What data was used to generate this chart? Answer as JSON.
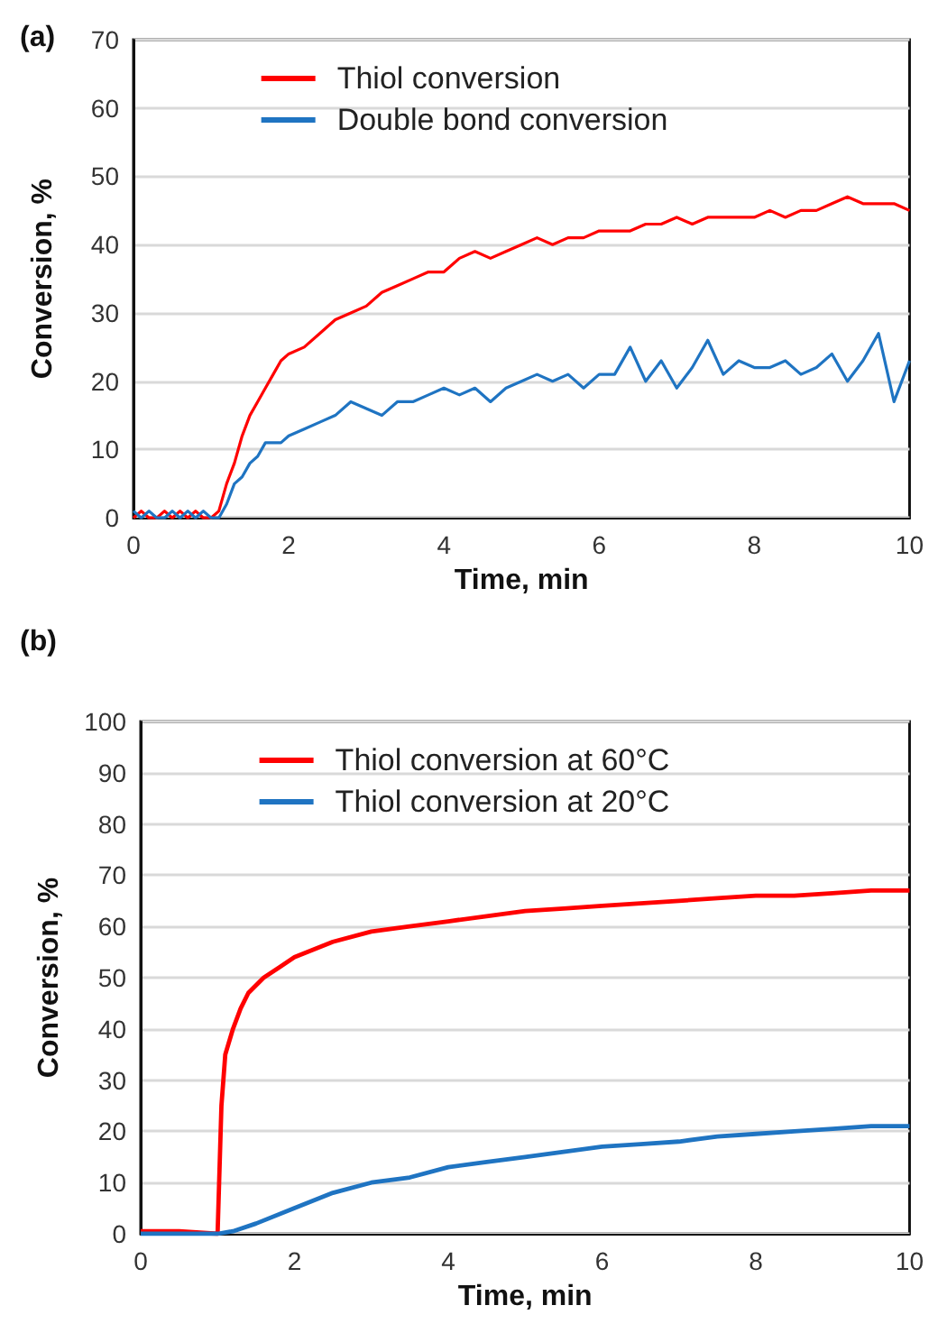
{
  "chart_data": [
    {
      "type": "line",
      "title": "(a)",
      "xlabel": "Time, min",
      "ylabel": "Conversion, %",
      "xlim": [
        0,
        10
      ],
      "xticks": [
        0,
        2,
        4,
        6,
        8,
        10
      ],
      "ylim": [
        0,
        70
      ],
      "yticks": [
        0,
        10,
        20,
        30,
        40,
        50,
        60,
        70
      ],
      "grid": "y",
      "legend": "top",
      "marker": "none",
      "line_style": "solid",
      "series": [
        {
          "name": "Thiol conversion",
          "color": "#ff0000",
          "x": [
            0,
            0.1,
            0.2,
            0.3,
            0.4,
            0.5,
            0.6,
            0.7,
            0.8,
            0.9,
            1.0,
            1.1,
            1.2,
            1.3,
            1.4,
            1.5,
            1.6,
            1.7,
            1.8,
            1.9,
            2.0,
            2.2,
            2.4,
            2.6,
            2.8,
            3.0,
            3.2,
            3.4,
            3.6,
            3.8,
            4.0,
            4.2,
            4.4,
            4.6,
            4.8,
            5.0,
            5.2,
            5.4,
            5.6,
            5.8,
            6.0,
            6.2,
            6.4,
            6.6,
            6.8,
            7.0,
            7.2,
            7.4,
            7.6,
            7.8,
            8.0,
            8.2,
            8.4,
            8.6,
            8.8,
            9.0,
            9.2,
            9.4,
            9.6,
            9.8,
            10
          ],
          "values": [
            0,
            1,
            0,
            0,
            1,
            0,
            1,
            0,
            1,
            0,
            0,
            1,
            5,
            8,
            12,
            15,
            17,
            19,
            21,
            23,
            24,
            25,
            27,
            29,
            30,
            31,
            33,
            34,
            35,
            36,
            36,
            38,
            39,
            38,
            39,
            40,
            41,
            40,
            41,
            41,
            42,
            42,
            42,
            43,
            43,
            44,
            43,
            44,
            44,
            44,
            44,
            45,
            44,
            45,
            45,
            46,
            47,
            46,
            46,
            46,
            45
          ]
        },
        {
          "name": "Double bond conversion",
          "color": "#1f74c2",
          "x": [
            0,
            0.1,
            0.2,
            0.3,
            0.4,
            0.5,
            0.6,
            0.7,
            0.8,
            0.9,
            1.0,
            1.1,
            1.2,
            1.3,
            1.4,
            1.5,
            1.6,
            1.7,
            1.8,
            1.9,
            2.0,
            2.2,
            2.4,
            2.6,
            2.8,
            3.0,
            3.2,
            3.4,
            3.6,
            3.8,
            4.0,
            4.2,
            4.4,
            4.6,
            4.8,
            5.0,
            5.2,
            5.4,
            5.6,
            5.8,
            6.0,
            6.2,
            6.4,
            6.6,
            6.8,
            7.0,
            7.2,
            7.4,
            7.6,
            7.8,
            8.0,
            8.2,
            8.4,
            8.6,
            8.8,
            9.0,
            9.2,
            9.4,
            9.6,
            9.8,
            10
          ],
          "values": [
            1,
            0,
            1,
            0,
            0,
            1,
            0,
            1,
            0,
            1,
            0,
            0,
            2,
            5,
            6,
            8,
            9,
            11,
            11,
            11,
            12,
            13,
            14,
            15,
            17,
            16,
            15,
            17,
            17,
            18,
            19,
            18,
            19,
            17,
            19,
            20,
            21,
            20,
            21,
            19,
            21,
            21,
            25,
            20,
            23,
            19,
            22,
            26,
            21,
            23,
            22,
            22,
            23,
            21,
            22,
            24,
            20,
            23,
            27,
            17,
            23
          ]
        }
      ]
    },
    {
      "type": "line",
      "title": "(b)",
      "xlabel": "Time, min",
      "ylabel": "Conversion, %",
      "xlim": [
        0,
        10
      ],
      "xticks": [
        0,
        2,
        4,
        6,
        8,
        10
      ],
      "ylim": [
        0,
        100
      ],
      "yticks": [
        0,
        10,
        20,
        30,
        40,
        50,
        60,
        70,
        80,
        90,
        100
      ],
      "grid": "y",
      "legend": "top",
      "marker": "none",
      "line_style": "solid",
      "series": [
        {
          "name": "Thiol conversion at 60°C",
          "color": "#ff0000",
          "x": [
            0,
            0.5,
            1.0,
            1.02,
            1.05,
            1.1,
            1.2,
            1.3,
            1.4,
            1.6,
            1.8,
            2.0,
            2.5,
            3.0,
            3.5,
            4.0,
            4.5,
            5.0,
            5.5,
            6.0,
            6.5,
            7.0,
            7.5,
            8.0,
            8.5,
            9.0,
            9.5,
            10
          ],
          "values": [
            0.5,
            0.5,
            0,
            10,
            25,
            35,
            40,
            44,
            47,
            50,
            52,
            54,
            57,
            59,
            60,
            61,
            62,
            63,
            63.5,
            64,
            64.5,
            65,
            65.5,
            66,
            66,
            66.5,
            67,
            67
          ]
        },
        {
          "name": "Thiol conversion at 20°C",
          "color": "#1f74c2",
          "x": [
            0,
            1.0,
            1.2,
            1.5,
            2.0,
            2.5,
            3.0,
            3.5,
            4.0,
            4.5,
            5.0,
            5.5,
            6.0,
            6.5,
            7.0,
            7.5,
            8.0,
            8.5,
            9.0,
            9.5,
            10
          ],
          "values": [
            0,
            0,
            0.5,
            2,
            5,
            8,
            10,
            11,
            13,
            14,
            15,
            16,
            17,
            17.5,
            18,
            19,
            19.5,
            20,
            20.5,
            21,
            21
          ]
        }
      ]
    }
  ]
}
